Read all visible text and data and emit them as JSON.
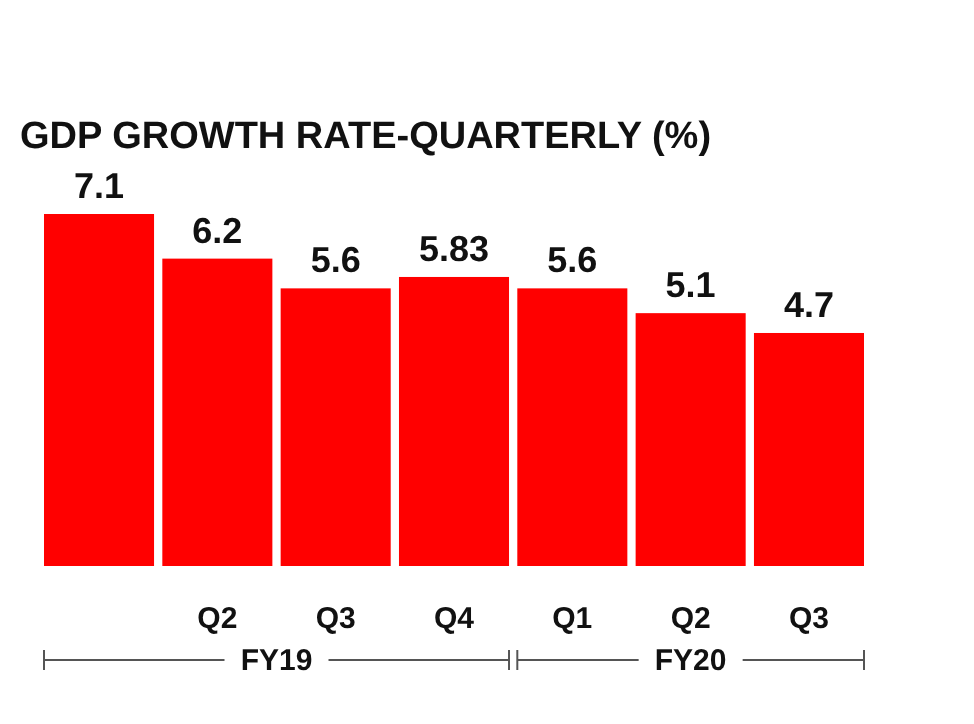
{
  "chart_data": {
    "type": "bar",
    "title": "GDP GROWTH RATE-QUARTERLY (%)",
    "categories": [
      null,
      "Q2",
      "Q3",
      "Q4",
      "Q1",
      "Q2",
      "Q3"
    ],
    "values": [
      7.1,
      6.2,
      5.6,
      5.83,
      5.6,
      5.1,
      4.7
    ],
    "color": "#ff0000",
    "data_labels": true,
    "annotations": [
      "FY19",
      "FY20"
    ]
  }
}
